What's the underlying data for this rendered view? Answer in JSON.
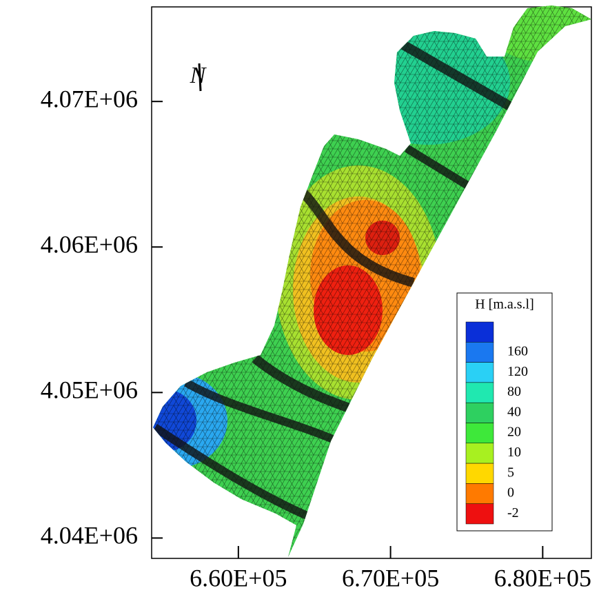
{
  "chart_data": {
    "type": "contour",
    "north_label": "N",
    "xlim": [
      654300,
      683200
    ],
    "ylim": [
      4038600,
      4076500
    ],
    "xticks": [
      {
        "value": 660000,
        "label": "6.60E+05"
      },
      {
        "value": 670000,
        "label": "6.70E+05"
      },
      {
        "value": 680000,
        "label": "6.80E+05"
      }
    ],
    "yticks": [
      {
        "value": 4040000,
        "label": "4.04E+06"
      },
      {
        "value": 4050000,
        "label": "4.05E+06"
      },
      {
        "value": 4060000,
        "label": "4.06E+06"
      },
      {
        "value": 4070000,
        "label": "4.07E+06"
      }
    ],
    "legend": {
      "title": "H [m.a.s.l]",
      "levels": [
        160,
        120,
        80,
        40,
        20,
        10,
        5,
        0,
        -2
      ],
      "colors": [
        "#0a2fd8",
        "#1a78f0",
        "#2ad0f5",
        "#20e8b0",
        "#2ed060",
        "#3ee83a",
        "#a8f020",
        "#ffd800",
        "#ff7a00",
        "#ee1010"
      ]
    }
  }
}
